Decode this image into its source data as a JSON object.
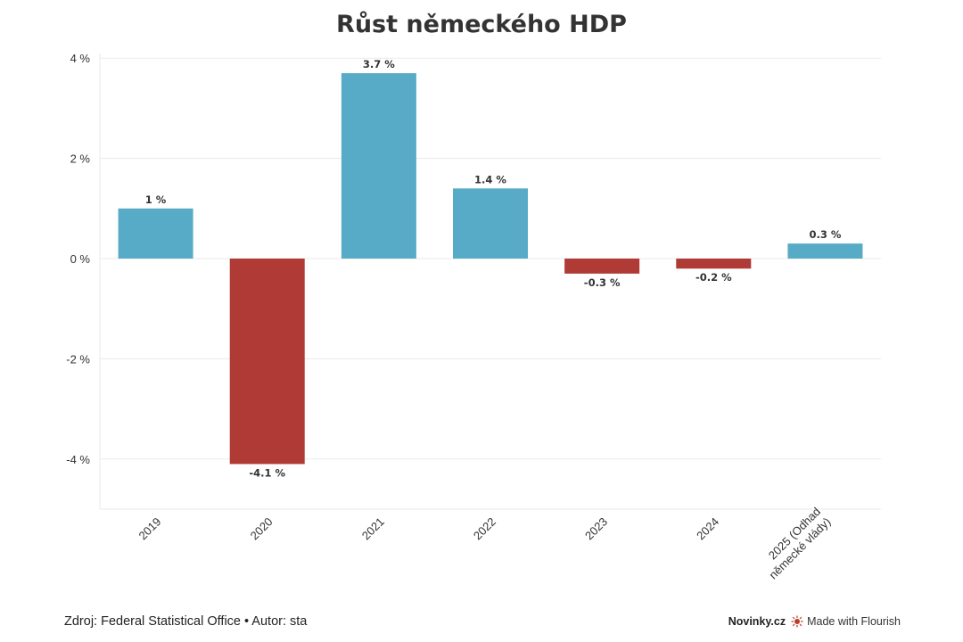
{
  "chart_data": {
    "type": "bar",
    "title": "Růst německého HDP",
    "categories": [
      "2019",
      "2020",
      "2021",
      "2022",
      "2023",
      "2024",
      "2025 (Odhad německé vlády)"
    ],
    "category_lines": [
      [
        "2019"
      ],
      [
        "2020"
      ],
      [
        "2021"
      ],
      [
        "2022"
      ],
      [
        "2023"
      ],
      [
        "2024"
      ],
      [
        "2025 (Odhad",
        "německé vlády)"
      ]
    ],
    "values": [
      1,
      -4.1,
      3.7,
      1.4,
      -0.3,
      -0.2,
      0.3
    ],
    "data_labels": [
      "1 %",
      "-4.1 %",
      "3.7 %",
      "1.4 %",
      "-0.3 %",
      "-0.2 %",
      "0.3 %"
    ],
    "ylim": [
      -5,
      4.1
    ],
    "yticks": [
      4,
      2,
      0,
      -2,
      -4
    ],
    "ytick_labels": [
      "4 %",
      "2 %",
      "0 %",
      "-2 %",
      "-4 %"
    ],
    "xlabel": "",
    "ylabel": "",
    "grid": true,
    "legend": "none",
    "colors": {
      "positive": "#58abc6",
      "negative": "#b03a36",
      "grid": "#eaeaea",
      "text": "#333333"
    }
  },
  "footer": {
    "source": "Zdroj: Federal Statistical Office • Autor: sta",
    "brand": "Novinky.cz",
    "made_with": "Made with Flourish"
  }
}
